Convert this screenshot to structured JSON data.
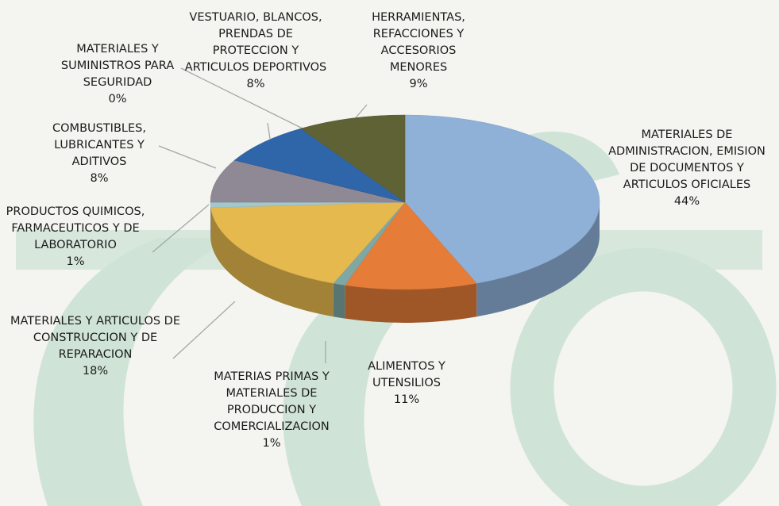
{
  "chart_data": {
    "type": "pie",
    "categories": [
      "MATERIALES DE ADMINISTRACION, EMISION DE DOCUMENTOS Y ARTICULOS OFICIALES",
      "ALIMENTOS Y UTENSILIOS",
      "MATERIAS PRIMAS Y MATERIALES DE PRODUCCION Y COMERCIALIZACION",
      "MATERIALES Y ARTICULOS DE CONSTRUCCION Y DE REPARACION",
      "PRODUCTOS QUIMICOS, FARMACEUTICOS Y DE LABORATORIO",
      "COMBUSTIBLES, LUBRICANTES Y ADITIVOS",
      "MATERIALES Y SUMINISTROS PARA SEGURIDAD",
      "VESTUARIO, BLANCOS, PRENDAS DE PROTECCION Y ARTICULOS DEPORTIVOS",
      "HERRAMIENTAS, REFACCIONES Y ACCESORIOS MENORES"
    ],
    "values": [
      44,
      11,
      1,
      18,
      1,
      8,
      0,
      8,
      9
    ],
    "value_labels": [
      "44%",
      "11%",
      "1%",
      "18%",
      "1%",
      "8%",
      "0%",
      "8%",
      "9%"
    ],
    "colors": [
      "#8fb1d8",
      "#e57c38",
      "#7fa7a3",
      "#e6b94f",
      "#a3c8cc",
      "#8f8996",
      "#a05a5a",
      "#2f66aa",
      "#5f6234"
    ]
  }
}
